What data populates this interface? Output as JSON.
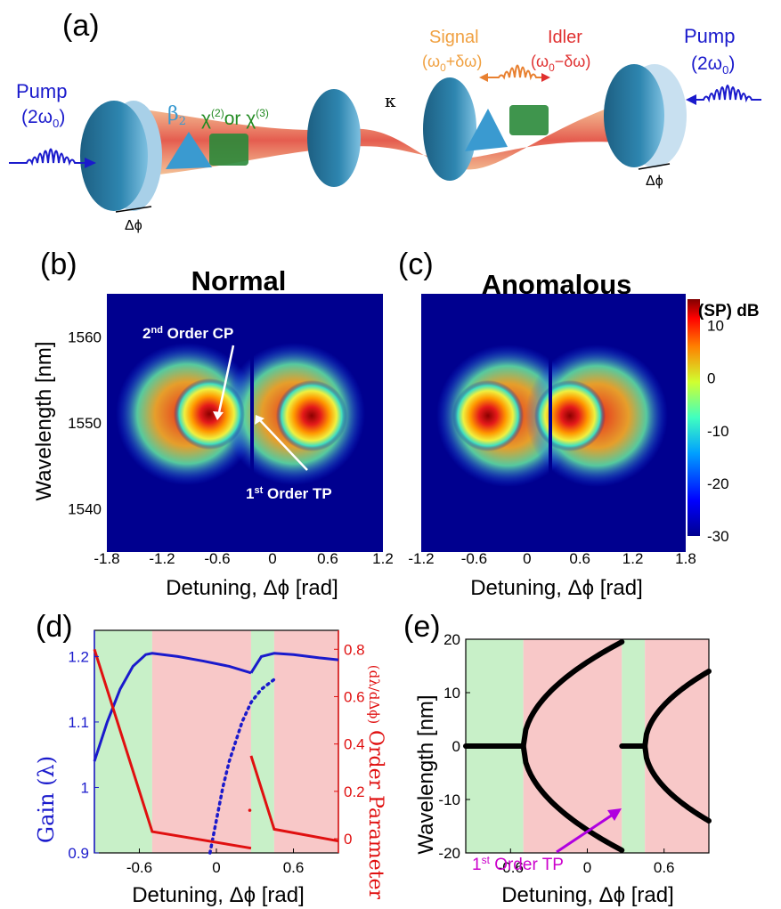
{
  "panel_a": {
    "letter": "(a)",
    "pump_left": "Pump",
    "pump_left_freq": "(2ω",
    "pump_right": "Pump",
    "pump_right_freq": "(2ω",
    "signal": "Signal",
    "signal_freq": "(ω",
    "idler": "Idler",
    "idler_freq": "(ω",
    "beta2": "β",
    "chi": "χ",
    "kappa": "κ",
    "phase_left": "Δϕ",
    "phase_right": "Δϕ",
    "colors": {
      "pump": "#1a1acc",
      "signal": "#f0a040",
      "idler": "#e03030",
      "chi": "#228b22",
      "beta": "#3a9ad0",
      "mirror": "#2e7fa8"
    }
  },
  "panel_b": {
    "letter": "(b)",
    "title": "Normal",
    "ylabel": "Wavelength [nm]",
    "xlabel": "Detuning, Δϕ [rad]",
    "annot_cp": "2nd Order CP",
    "annot_tp": "1st Order TP",
    "xticks": [
      "-1.8",
      "-1.2",
      "-0.6",
      "0",
      "0.6",
      "1.2"
    ],
    "yticks": [
      "1560",
      "1550",
      "1540"
    ]
  },
  "panel_c": {
    "letter": "(c)",
    "title": "Anomalous",
    "xlabel": "Detuning, Δϕ [rad]",
    "xticks": [
      "-1.2",
      "-0.6",
      "0",
      "0.6",
      "1.2",
      "1.8"
    ],
    "colorbar_label": "(SP) dB",
    "colorbar_ticks": [
      "10",
      "0",
      "-10",
      "-20",
      "-30"
    ]
  },
  "panel_d": {
    "letter": "(d)",
    "ylabel_left": "Gain (λ)",
    "ylabel_right": "Order Parameter",
    "xlabel": "Detuning, Δϕ [rad]",
    "yticks_left": [
      "1.2",
      "1.1",
      "1",
      "0.9"
    ],
    "yticks_right": [
      "0.8",
      "0.6",
      "0.4",
      "0.2",
      "0"
    ],
    "xticks": [
      "-0.6",
      "0",
      "0.6"
    ]
  },
  "panel_e": {
    "letter": "(e)",
    "ylabel": "Wavelength [nm]",
    "xlabel": "Detuning, Δϕ [rad]",
    "annot_tp": "1st Order TP",
    "yticks": [
      "20",
      "10",
      "0",
      "-10",
      "-20"
    ],
    "xticks": [
      "-0.6",
      "0",
      "0.6"
    ]
  },
  "chart_data": [
    {
      "type": "heatmap",
      "title": "Normal",
      "xlabel": "Detuning, Δϕ [rad]",
      "ylabel": "Wavelength [nm]",
      "xlim": [
        -1.8,
        1.2
      ],
      "ylim": [
        1535,
        1565
      ],
      "colorbar_range_dB": [
        -30,
        15
      ],
      "features": [
        {
          "name": "lobe1",
          "x_center": -0.55,
          "y_center": 1550
        },
        {
          "name": "lobe2",
          "x_center": 0.6,
          "y_center": 1550
        }
      ]
    },
    {
      "type": "heatmap",
      "title": "Anomalous",
      "xlabel": "Detuning, Δϕ [rad]",
      "xlim": [
        -1.2,
        1.8
      ],
      "ylim": [
        1535,
        1565
      ],
      "colorbar_label": "(SP) dB",
      "colorbar_range_dB": [
        -30,
        15
      ],
      "features": [
        {
          "name": "lobe1",
          "x_center": -0.6,
          "y_center": 1550
        },
        {
          "name": "lobe2",
          "x_center": 0.6,
          "y_center": 1550
        }
      ]
    },
    {
      "type": "line",
      "xlabel": "Detuning, Δϕ [rad]",
      "ylabel_left": "Gain (λ)",
      "ylabel_right": "Order Parameter",
      "xlim": [
        -0.95,
        0.95
      ],
      "ylim_left": [
        0.9,
        1.24
      ],
      "ylim_right": [
        -0.06,
        0.88
      ],
      "regions": [
        {
          "x": [
            -0.95,
            -0.5
          ],
          "color": "#c8f0c8"
        },
        {
          "x": [
            -0.5,
            0.27
          ],
          "color": "#f8c8c8"
        },
        {
          "x": [
            0.27,
            0.45
          ],
          "color": "#c8f0c8"
        },
        {
          "x": [
            0.45,
            0.95
          ],
          "color": "#f8c8c8"
        }
      ],
      "series": [
        {
          "color": "#1a1acc",
          "style": "solid",
          "x": [
            -0.95,
            -0.85,
            -0.75,
            -0.65,
            -0.55,
            -0.5,
            -0.3,
            -0.1,
            0.1,
            0.27
          ],
          "y": [
            1.04,
            1.1,
            1.15,
            1.185,
            1.203,
            1.205,
            1.2,
            1.193,
            1.185,
            1.175
          ]
        },
        {
          "color": "#1a1acc",
          "style": "dotted",
          "x": [
            -0.05,
            0.0,
            0.05,
            0.1,
            0.15,
            0.2,
            0.27,
            0.35,
            0.45
          ],
          "y": [
            0.9,
            0.95,
            1.0,
            1.04,
            1.07,
            1.1,
            1.13,
            1.15,
            1.165
          ]
        },
        {
          "color": "#1a1acc",
          "style": "solid",
          "x": [
            0.27,
            0.35,
            0.45,
            0.6,
            0.8,
            0.95
          ],
          "y": [
            1.175,
            1.2,
            1.205,
            1.203,
            1.198,
            1.195
          ]
        },
        {
          "color": "#e01010",
          "style": "solid",
          "axis": "right",
          "x": [
            -0.95,
            -0.5,
            -0.5,
            0.27
          ],
          "y": [
            0.8,
            0.03,
            0.03,
            -0.04
          ]
        },
        {
          "color": "#e01010",
          "style": "solid",
          "axis": "right",
          "x": [
            0.27,
            0.45,
            0.45,
            0.95
          ],
          "y": [
            0.35,
            0.04,
            0.04,
            -0.01
          ]
        }
      ]
    },
    {
      "type": "scatter",
      "xlabel": "Detuning, Δϕ [rad]",
      "ylabel": "Wavelength [nm]",
      "xlim": [
        -0.95,
        0.95
      ],
      "ylim": [
        -20,
        20
      ],
      "regions": [
        {
          "x": [
            -0.95,
            -0.5
          ],
          "color": "#c8f0c8"
        },
        {
          "x": [
            -0.5,
            0.27
          ],
          "color": "#f8c8c8"
        },
        {
          "x": [
            0.27,
            0.45
          ],
          "color": "#c8f0c8"
        },
        {
          "x": [
            0.45,
            0.95
          ],
          "color": "#f8c8c8"
        }
      ],
      "branches": [
        {
          "x": [
            -0.95,
            -0.5
          ],
          "y": [
            0,
            0
          ]
        },
        {
          "x_start": -0.5,
          "x_end": 0.27,
          "y_max": 19.5,
          "shape": "parabola"
        },
        {
          "x": [
            0.27,
            0.45
          ],
          "y": [
            0,
            0
          ]
        },
        {
          "x_start": 0.45,
          "x_end": 0.95,
          "y_max": 14,
          "shape": "parabola"
        }
      ]
    }
  ]
}
